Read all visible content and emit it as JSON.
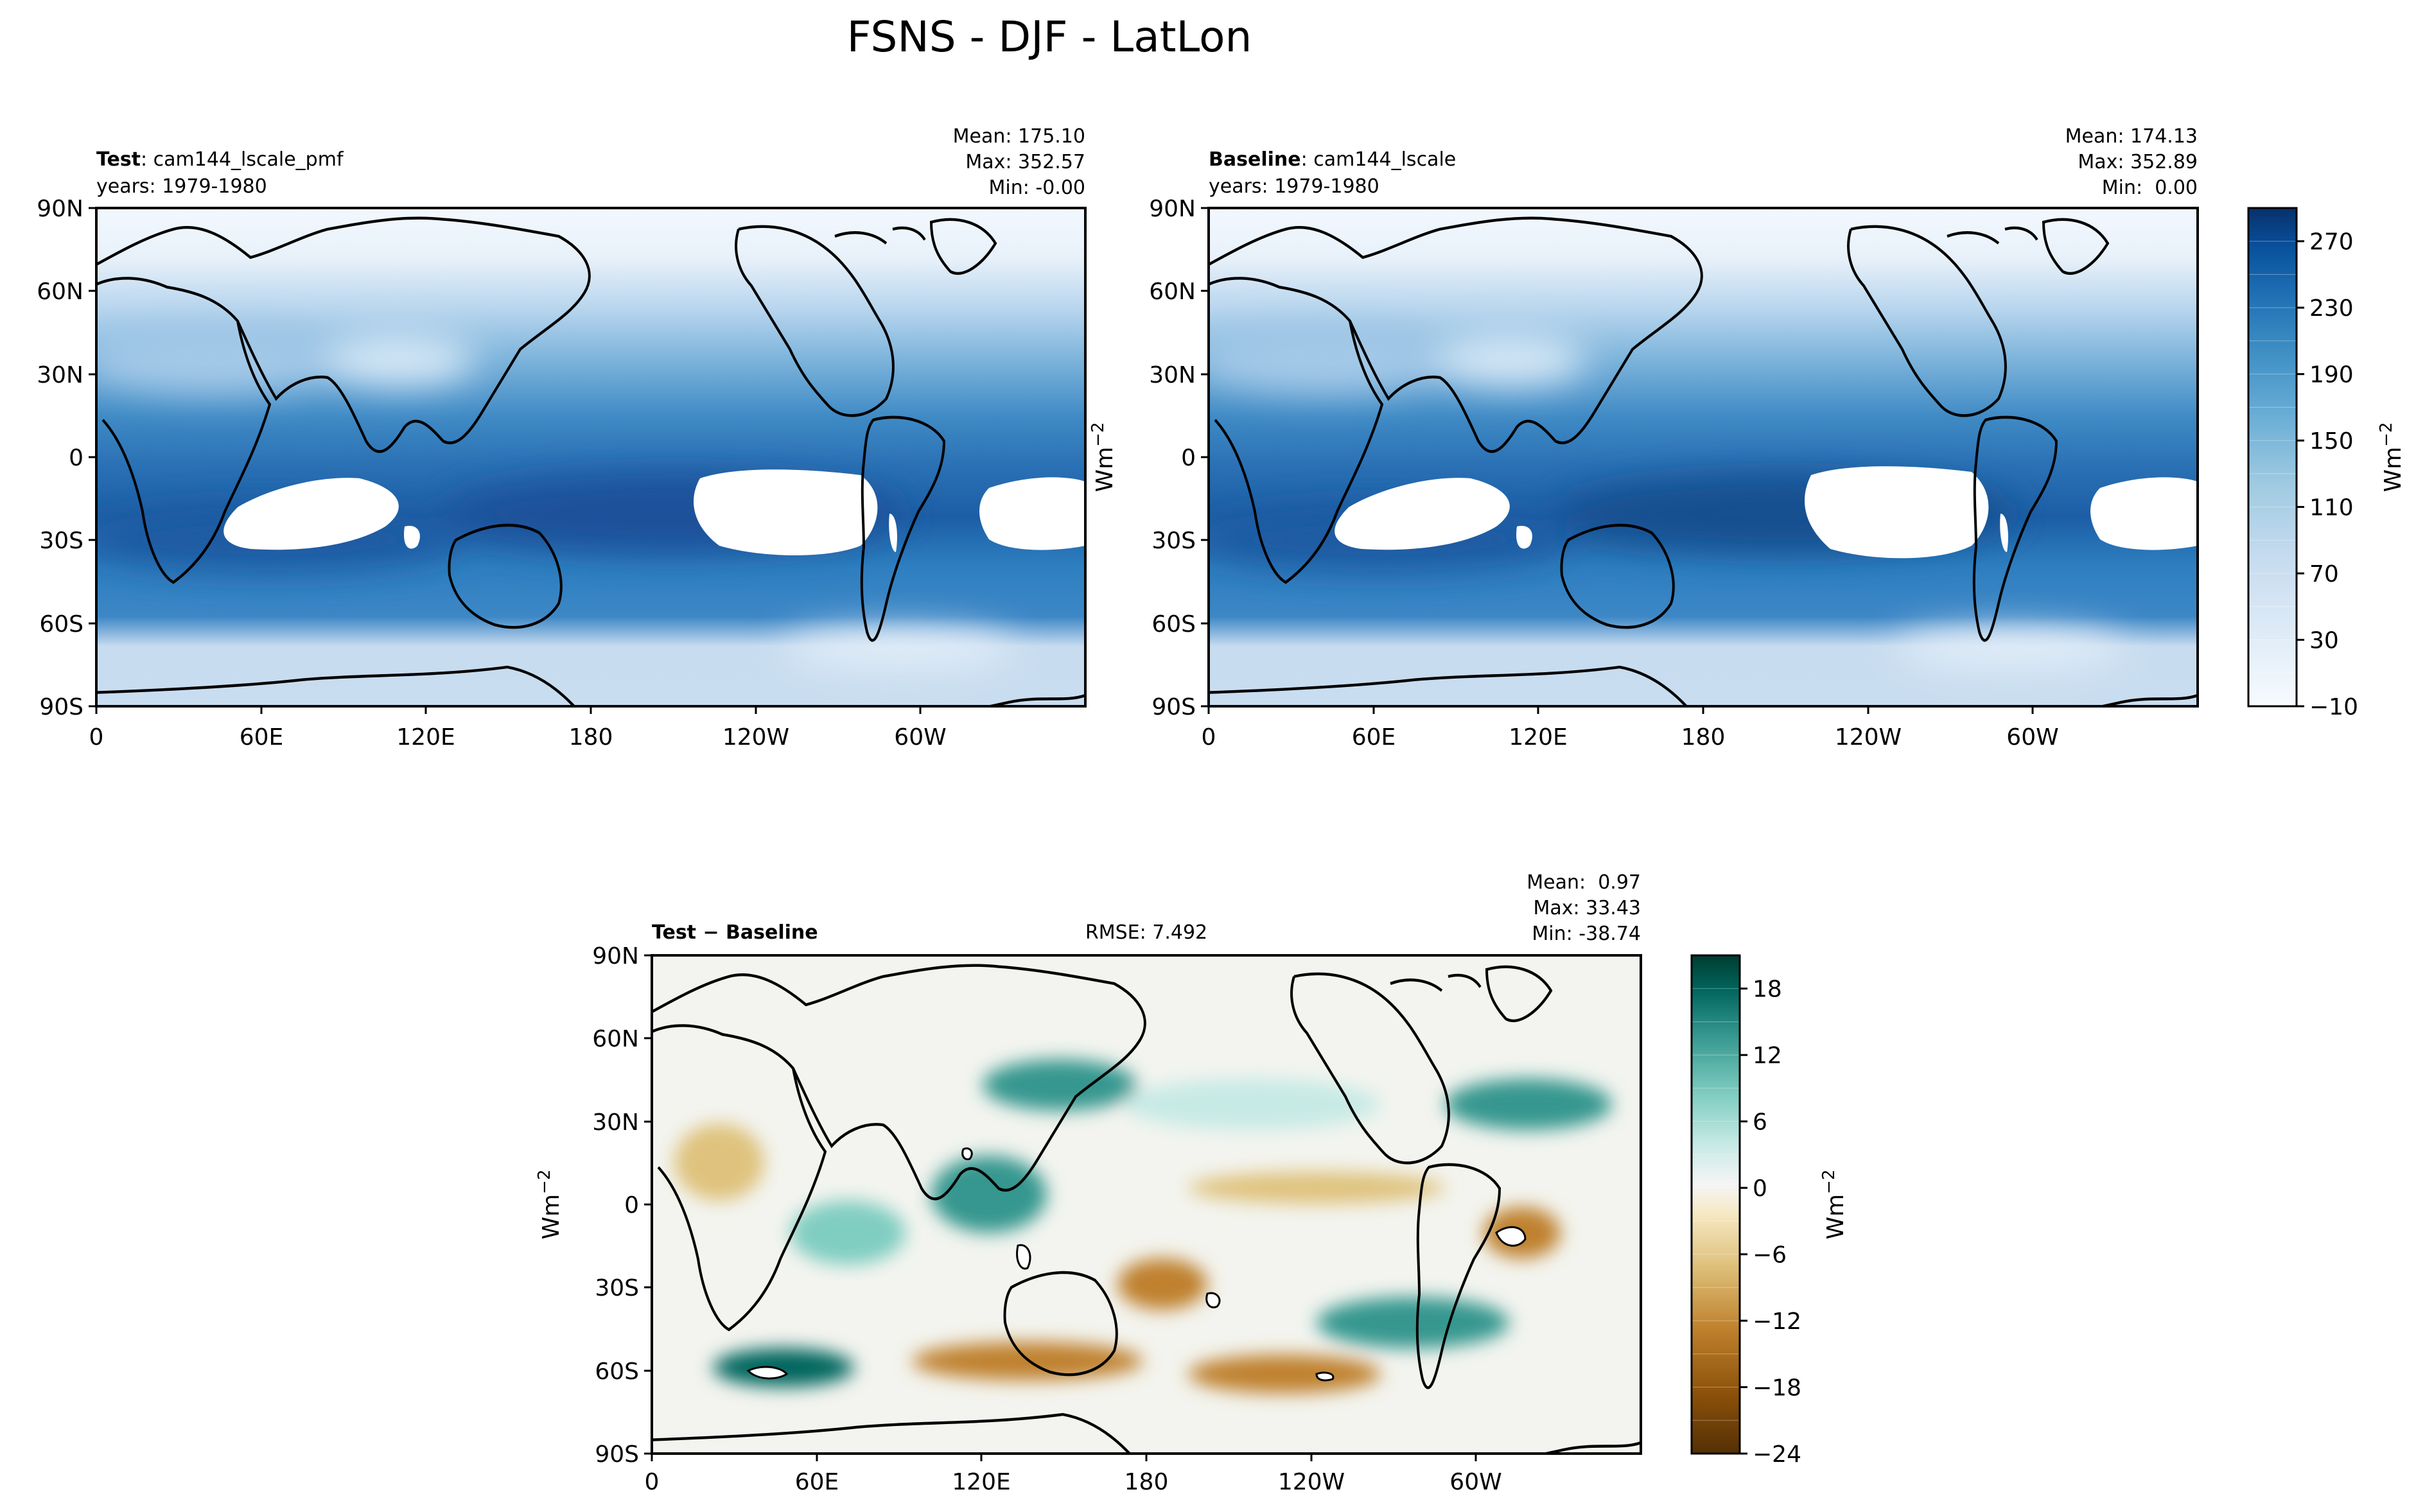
{
  "figure_title": "FSNS - DJF - LatLon",
  "lat_ticks": [
    "90N",
    "60N",
    "30N",
    "0",
    "30S",
    "60S",
    "90S"
  ],
  "lon_ticks": [
    "0",
    "60E",
    "120E",
    "180",
    "120W",
    "60W"
  ],
  "chart_data": [
    {
      "type": "heatmap",
      "panel": "test",
      "label_bold": "Test",
      "label_rest": ": cam144_lscale_pmf",
      "years": "years: 1979-1980",
      "stats": [
        "Mean: 175.10",
        "Max: 352.57",
        "Min: -0.00"
      ],
      "xlim": [
        0,
        360
      ],
      "ylim": [
        -90,
        90
      ],
      "ylabel": "Wm^-2",
      "colormap": "Blues"
    },
    {
      "type": "heatmap",
      "panel": "baseline",
      "label_bold": "Baseline",
      "label_rest": ": cam144_lscale",
      "years": "years: 1979-1980",
      "stats": [
        "Mean: 174.13",
        "Max: 352.89",
        "Min:  0.00"
      ],
      "xlim": [
        0,
        360
      ],
      "ylim": [
        -90,
        90
      ],
      "colormap": "Blues",
      "colorbar": {
        "levels": [
          -10,
          10,
          30,
          50,
          70,
          90,
          110,
          130,
          150,
          170,
          190,
          210,
          230,
          250,
          270,
          290
        ],
        "tick_labels": [
          "270",
          "230",
          "190",
          "150",
          "110",
          "70",
          "30",
          "−10"
        ],
        "tick_values": [
          270,
          230,
          190,
          150,
          110,
          70,
          30,
          -10
        ],
        "label": "Wm^-2",
        "colors": [
          "#f7fbff",
          "#e3eef9",
          "#cfe1f2",
          "#b5d4e9",
          "#93c3df",
          "#6daed5",
          "#4b97c9",
          "#2f7ebc",
          "#1864aa",
          "#0a4a90",
          "#08306b"
        ]
      }
    },
    {
      "type": "heatmap",
      "panel": "difference",
      "label_bold": "Test − Baseline",
      "rmse": "RMSE: 7.492",
      "stats": [
        "Mean:  0.97",
        "Max: 33.43",
        "Min: -38.74"
      ],
      "xlim": [
        0,
        360
      ],
      "ylim": [
        -90,
        90
      ],
      "ylabel": "Wm^-2",
      "colormap": "BrBG",
      "colorbar": {
        "levels": [
          -24,
          -21,
          -18,
          -15,
          -12,
          -9,
          -6,
          -3,
          0,
          3,
          6,
          9,
          12,
          15,
          18,
          21
        ],
        "tick_labels": [
          "18",
          "12",
          "6",
          "0",
          "−6",
          "−12",
          "−18",
          "−24"
        ],
        "tick_values": [
          18,
          12,
          6,
          0,
          -6,
          -12,
          -18,
          -24
        ],
        "label": "Wm^-2",
        "colors": [
          "#543005",
          "#8c510a",
          "#bf812d",
          "#dfc27d",
          "#f6e8c3",
          "#f5f5f5",
          "#c7eae5",
          "#80cdc1",
          "#35978f",
          "#01665e",
          "#003c30"
        ]
      }
    }
  ]
}
